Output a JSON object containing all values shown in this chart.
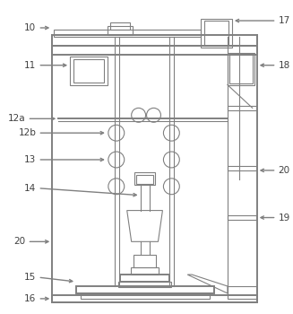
{
  "line_color": "#808080",
  "arrow_color": "#808080",
  "text_color": "#404040",
  "label_fontsize": 7.5,
  "figsize": [
    3.27,
    3.5
  ],
  "dpi": 100
}
